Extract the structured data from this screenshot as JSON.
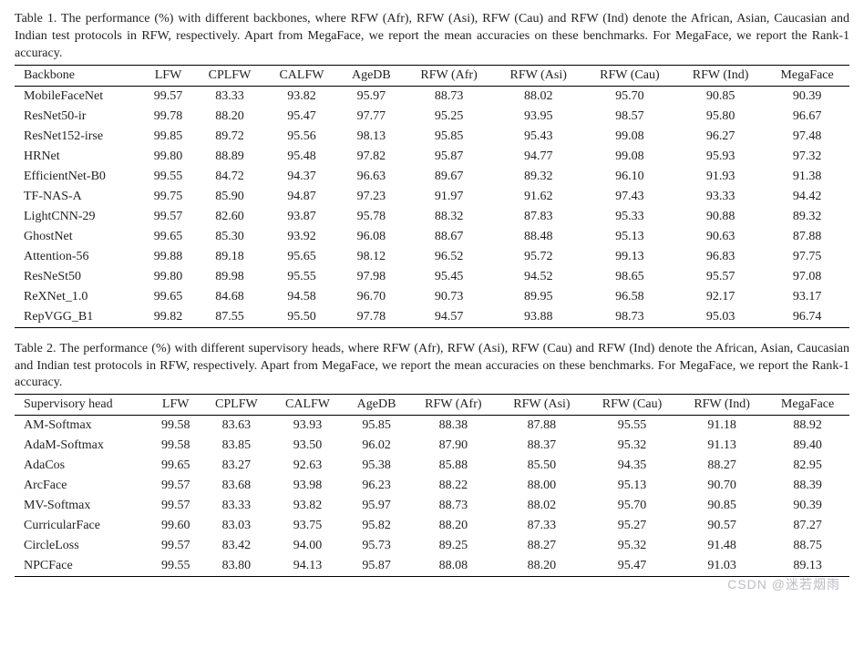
{
  "table1": {
    "caption": "Table 1. The performance (%) with different backbones, where RFW (Afr), RFW (Asi), RFW (Cau) and RFW (Ind) denote the African, Asian, Caucasian and Indian test protocols in RFW, respectively. Apart from MegaFace, we report the mean accuracies on these benchmarks. For MegaFace, we report the Rank-1 accuracy.",
    "columns": [
      "Backbone",
      "LFW",
      "CPLFW",
      "CALFW",
      "AgeDB",
      "RFW (Afr)",
      "RFW (Asi)",
      "RFW (Cau)",
      "RFW (Ind)",
      "MegaFace"
    ],
    "rows": [
      [
        "MobileFaceNet",
        "99.57",
        "83.33",
        "93.82",
        "95.97",
        "88.73",
        "88.02",
        "95.70",
        "90.85",
        "90.39"
      ],
      [
        "ResNet50-ir",
        "99.78",
        "88.20",
        "95.47",
        "97.77",
        "95.25",
        "93.95",
        "98.57",
        "95.80",
        "96.67"
      ],
      [
        "ResNet152-irse",
        "99.85",
        "89.72",
        "95.56",
        "98.13",
        "95.85",
        "95.43",
        "99.08",
        "96.27",
        "97.48"
      ],
      [
        "HRNet",
        "99.80",
        "88.89",
        "95.48",
        "97.82",
        "95.87",
        "94.77",
        "99.08",
        "95.93",
        "97.32"
      ],
      [
        "EfficientNet-B0",
        "99.55",
        "84.72",
        "94.37",
        "96.63",
        "89.67",
        "89.32",
        "96.10",
        "91.93",
        "91.38"
      ],
      [
        "TF-NAS-A",
        "99.75",
        "85.90",
        "94.87",
        "97.23",
        "91.97",
        "91.62",
        "97.43",
        "93.33",
        "94.42"
      ],
      [
        "LightCNN-29",
        "99.57",
        "82.60",
        "93.87",
        "95.78",
        "88.32",
        "87.83",
        "95.33",
        "90.88",
        "89.32"
      ],
      [
        "GhostNet",
        "99.65",
        "85.30",
        "93.92",
        "96.08",
        "88.67",
        "88.48",
        "95.13",
        "90.63",
        "87.88"
      ],
      [
        "Attention-56",
        "99.88",
        "89.18",
        "95.65",
        "98.12",
        "96.52",
        "95.72",
        "99.13",
        "96.83",
        "97.75"
      ],
      [
        "ResNeSt50",
        "99.80",
        "89.98",
        "95.55",
        "97.98",
        "95.45",
        "94.52",
        "98.65",
        "95.57",
        "97.08"
      ],
      [
        "ReXNet_1.0",
        "99.65",
        "84.68",
        "94.58",
        "96.70",
        "90.73",
        "89.95",
        "96.58",
        "92.17",
        "93.17"
      ],
      [
        "RepVGG_B1",
        "99.82",
        "87.55",
        "95.50",
        "97.78",
        "94.57",
        "93.88",
        "98.73",
        "95.03",
        "96.74"
      ]
    ]
  },
  "table2": {
    "caption": "Table 2. The performance (%) with different supervisory heads, where RFW (Afr), RFW (Asi), RFW (Cau) and RFW (Ind) denote the African, Asian, Caucasian and Indian test protocols in RFW, respectively. Apart from MegaFace, we report the mean accuracies on these benchmarks. For MegaFace, we report the Rank-1 accuracy.",
    "columns": [
      "Supervisory head",
      "LFW",
      "CPLFW",
      "CALFW",
      "AgeDB",
      "RFW (Afr)",
      "RFW (Asi)",
      "RFW (Cau)",
      "RFW (Ind)",
      "MegaFace"
    ],
    "rows": [
      [
        "AM-Softmax",
        "99.58",
        "83.63",
        "93.93",
        "95.85",
        "88.38",
        "87.88",
        "95.55",
        "91.18",
        "88.92"
      ],
      [
        "AdaM-Softmax",
        "99.58",
        "83.85",
        "93.50",
        "96.02",
        "87.90",
        "88.37",
        "95.32",
        "91.13",
        "89.40"
      ],
      [
        "AdaCos",
        "99.65",
        "83.27",
        "92.63",
        "95.38",
        "85.88",
        "85.50",
        "94.35",
        "88.27",
        "82.95"
      ],
      [
        "ArcFace",
        "99.57",
        "83.68",
        "93.98",
        "96.23",
        "88.22",
        "88.00",
        "95.13",
        "90.70",
        "88.39"
      ],
      [
        "MV-Softmax",
        "99.57",
        "83.33",
        "93.82",
        "95.97",
        "88.73",
        "88.02",
        "95.70",
        "90.85",
        "90.39"
      ],
      [
        "CurricularFace",
        "99.60",
        "83.03",
        "93.75",
        "95.82",
        "88.20",
        "87.33",
        "95.27",
        "90.57",
        "87.27"
      ],
      [
        "CircleLoss",
        "99.57",
        "83.42",
        "94.00",
        "95.73",
        "89.25",
        "88.27",
        "95.32",
        "91.48",
        "88.75"
      ],
      [
        "NPCFace",
        "99.55",
        "83.80",
        "94.13",
        "95.87",
        "88.08",
        "88.20",
        "95.47",
        "91.03",
        "89.13"
      ]
    ]
  },
  "watermark": "CSDN @迷若烟雨"
}
